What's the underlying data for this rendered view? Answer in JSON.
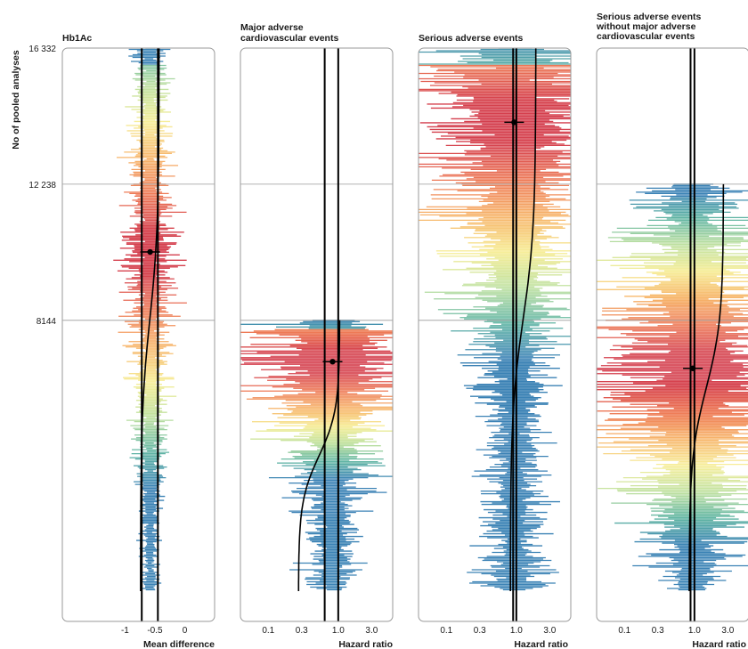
{
  "y_axis": {
    "label": "No of pooled analyses",
    "ticks": [
      {
        "label": "16 332",
        "value": 16332
      },
      {
        "label": "12 238",
        "value": 12238
      },
      {
        "label": "8144",
        "value": 8144
      }
    ]
  },
  "colors": {
    "gradient": [
      "#3b82b5",
      "#5fb4a3",
      "#bfe1a0",
      "#f7ee9a",
      "#f7b56a",
      "#ee7a56",
      "#d6434e",
      "#d33c4e"
    ],
    "frame": "#9a9a9a",
    "line": "#000000"
  },
  "chart_data": [
    {
      "type": "vibration-plot",
      "title": "Hb1Ac",
      "title_lines": [
        "Hb1Ac"
      ],
      "xlabel": "Mean difference",
      "x_scale": "linear",
      "xlim": [
        -2.05,
        0.5
      ],
      "x_ticks": [
        {
          "value": -1,
          "label": "-1"
        },
        {
          "value": -0.5,
          "label": "-0.5"
        },
        {
          "value": 0,
          "label": "0"
        }
      ],
      "n_analyses": 16332,
      "reference_lines": [
        -0.72,
        -0.45
      ],
      "median_estimate": {
        "x": -0.58,
        "n": 10200
      },
      "cdf_range": [
        -0.74,
        -0.43
      ],
      "row_spread": 0.5
    },
    {
      "type": "vibration-plot",
      "title": "Major adverse cardiovascular events",
      "title_lines": [
        "Major adverse",
        "cardiovascular events"
      ],
      "xlabel": "Hazard ratio",
      "x_scale": "log",
      "xlim": [
        0.04,
        6.0
      ],
      "x_ticks": [
        {
          "value": 0.1,
          "label": "0.1"
        },
        {
          "value": 0.3,
          "label": "0.3"
        },
        {
          "value": 1.0,
          "label": "1.0"
        },
        {
          "value": 3.0,
          "label": "3.0"
        }
      ],
      "n_analyses": 8144,
      "reference_lines": [
        0.64,
        1.0
      ],
      "median_estimate": {
        "x": 0.83,
        "n": 6900
      },
      "cdf_range": [
        0.27,
        1.05
      ],
      "row_spread": 1.5
    },
    {
      "type": "vibration-plot",
      "title": "Serious adverse events",
      "title_lines": [
        "Serious adverse events"
      ],
      "xlabel": "Hazard ratio",
      "x_scale": "log",
      "xlim": [
        0.04,
        6.0
      ],
      "x_ticks": [
        {
          "value": 0.1,
          "label": "0.1"
        },
        {
          "value": 0.3,
          "label": "0.3"
        },
        {
          "value": 1.0,
          "label": "1.0"
        },
        {
          "value": 3.0,
          "label": "3.0"
        }
      ],
      "n_analyses": 16332,
      "reference_lines": [
        0.9,
        1.0
      ],
      "median_estimate": {
        "x": 0.93,
        "n": 14100
      },
      "cdf_range": [
        0.82,
        1.9
      ],
      "row_spread": 1.6
    },
    {
      "type": "vibration-plot",
      "title": "Serious adverse events without major adverse cardiovascular events",
      "title_lines": [
        "Serious adverse events",
        "without major adverse",
        "cardiovascular events"
      ],
      "xlabel": "Hazard ratio",
      "x_scale": "log",
      "xlim": [
        0.04,
        6.0
      ],
      "x_ticks": [
        {
          "value": 0.1,
          "label": "0.1"
        },
        {
          "value": 0.3,
          "label": "0.3"
        },
        {
          "value": 1.0,
          "label": "1.0"
        },
        {
          "value": 3.0,
          "label": "3.0"
        }
      ],
      "n_analyses": 12238,
      "reference_lines": [
        0.88,
        1.0
      ],
      "median_estimate": {
        "x": 0.95,
        "n": 6700
      },
      "cdf_range": [
        0.84,
        2.6
      ],
      "row_spread": 1.7
    }
  ]
}
